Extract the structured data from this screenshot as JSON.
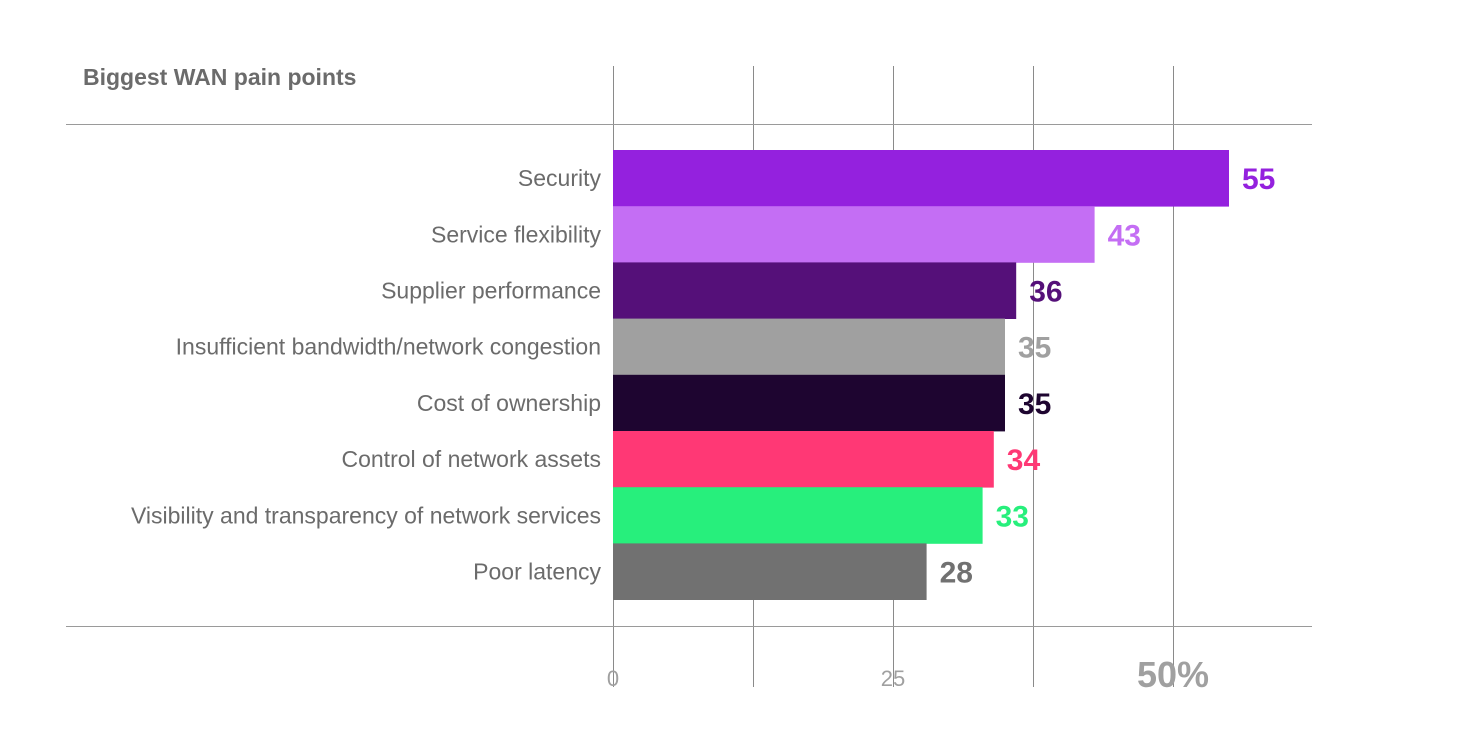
{
  "chart_data": {
    "type": "bar",
    "orientation": "horizontal",
    "title": "Biggest WAN pain points",
    "categories": [
      "Security",
      "Service flexibility",
      "Supplier performance",
      "Insufficient bandwidth/network congestion",
      "Cost of ownership",
      "Control of network assets",
      "Visibility and transparency of network services",
      "Poor latency"
    ],
    "values": [
      55,
      43,
      36,
      35,
      35,
      34,
      33,
      28
    ],
    "colors": [
      "#9421de",
      "#c46ef4",
      "#551079",
      "#a0a0a0",
      "#1e0530",
      "#ff3875",
      "#27ef7c",
      "#717171"
    ],
    "xlim": [
      0,
      62.5
    ],
    "x_ticks": [
      {
        "value": 0,
        "label": "0"
      },
      {
        "value": 25,
        "label": "25"
      },
      {
        "value": 50,
        "label": "50%"
      }
    ],
    "minor_gridlines": [
      12.5,
      37.5
    ],
    "grid": true
  }
}
